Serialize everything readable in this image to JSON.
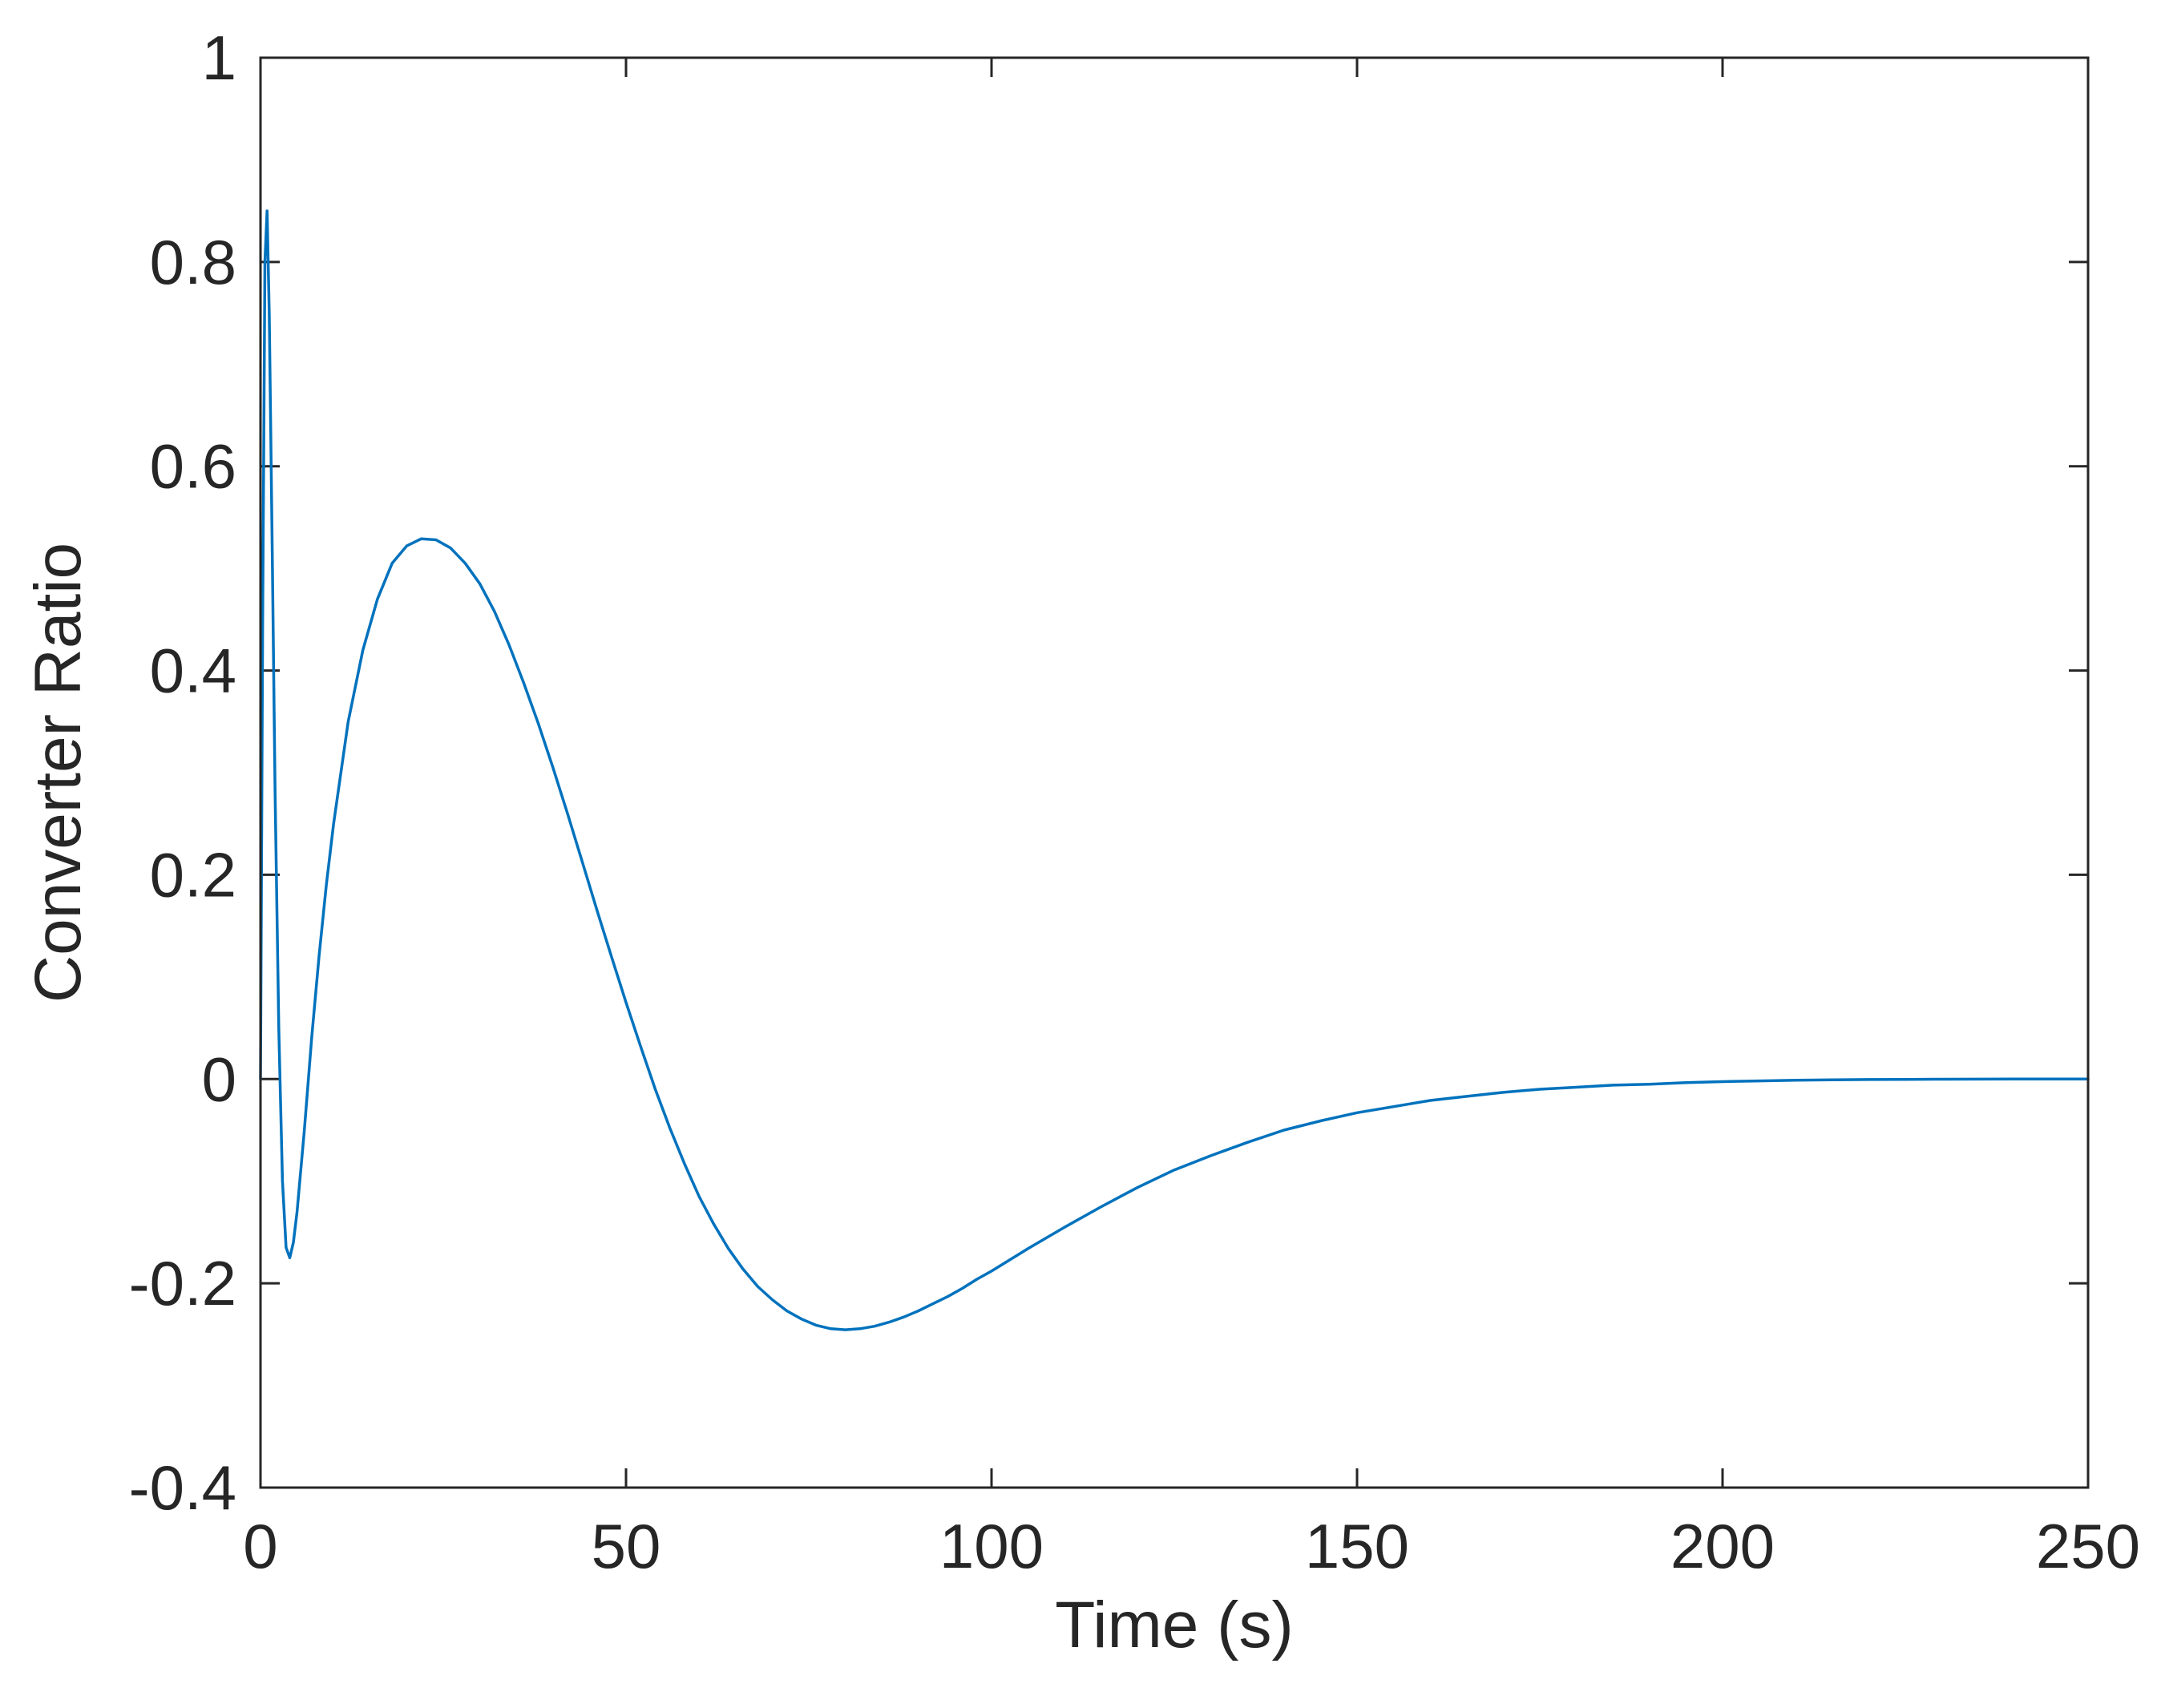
{
  "chart_data": {
    "type": "line",
    "title": "",
    "xlabel": "Time (s)",
    "ylabel": "Converter Ratio",
    "xlim": [
      0,
      250
    ],
    "ylim": [
      -0.4,
      1
    ],
    "xticks": [
      0,
      50,
      100,
      150,
      200,
      250
    ],
    "xtick_labels": [
      "0",
      "50",
      "100",
      "150",
      "200",
      "250"
    ],
    "yticks": [
      -0.4,
      -0.2,
      0,
      0.2,
      0.4,
      0.6,
      0.8,
      1
    ],
    "ytick_labels": [
      "-0.4",
      "-0.2",
      "0",
      "0.2",
      "0.4",
      "0.6",
      "0.8",
      "1"
    ],
    "grid": false,
    "box": true,
    "colors": {
      "line": "#0072BD",
      "axes": "#262626",
      "background": "#ffffff"
    },
    "series": [
      {
        "x": [
          0,
          0.3,
          0.6,
          0.9,
          1.2,
          1.6,
          2.0,
          2.5,
          3.0,
          3.5,
          4.0,
          4.5,
          5.0,
          6,
          7,
          8,
          9,
          10,
          12,
          14,
          16,
          18,
          20,
          22,
          24,
          26,
          28,
          30,
          32,
          34,
          36,
          38,
          40,
          42,
          44,
          46,
          48,
          50,
          52,
          54,
          56,
          58,
          60,
          62,
          64,
          66,
          68,
          70,
          72,
          74,
          76,
          78,
          80,
          82,
          84,
          86,
          88,
          90,
          92,
          94,
          96,
          98,
          100,
          105,
          110,
          115,
          120,
          125,
          130,
          135,
          140,
          145,
          150,
          155,
          160,
          165,
          170,
          175,
          180,
          185,
          190,
          195,
          200,
          205,
          210,
          215,
          220,
          225,
          230,
          235,
          240,
          245,
          250
        ],
        "y": [
          0.0,
          0.45,
          0.8,
          0.85,
          0.75,
          0.52,
          0.28,
          0.05,
          -0.1,
          -0.165,
          -0.175,
          -0.16,
          -0.13,
          -0.05,
          0.04,
          0.12,
          0.19,
          0.25,
          0.35,
          0.42,
          0.47,
          0.505,
          0.522,
          0.529,
          0.528,
          0.52,
          0.505,
          0.485,
          0.458,
          0.425,
          0.388,
          0.348,
          0.305,
          0.26,
          0.213,
          0.166,
          0.12,
          0.075,
          0.032,
          -0.01,
          -0.048,
          -0.083,
          -0.115,
          -0.142,
          -0.166,
          -0.186,
          -0.203,
          -0.216,
          -0.227,
          -0.235,
          -0.241,
          -0.2445,
          -0.2455,
          -0.2445,
          -0.242,
          -0.238,
          -0.233,
          -0.227,
          -0.22,
          -0.213,
          -0.205,
          -0.196,
          -0.188,
          -0.166,
          -0.145,
          -0.125,
          -0.106,
          -0.089,
          -0.075,
          -0.062,
          -0.05,
          -0.041,
          -0.033,
          -0.027,
          -0.021,
          -0.017,
          -0.013,
          -0.01,
          -0.008,
          -0.006,
          -0.005,
          -0.0035,
          -0.0025,
          -0.0018,
          -0.0012,
          -0.0008,
          -0.0005,
          -0.0003,
          -0.0002,
          -0.0001,
          0.0,
          0.0,
          0.0
        ]
      }
    ]
  }
}
